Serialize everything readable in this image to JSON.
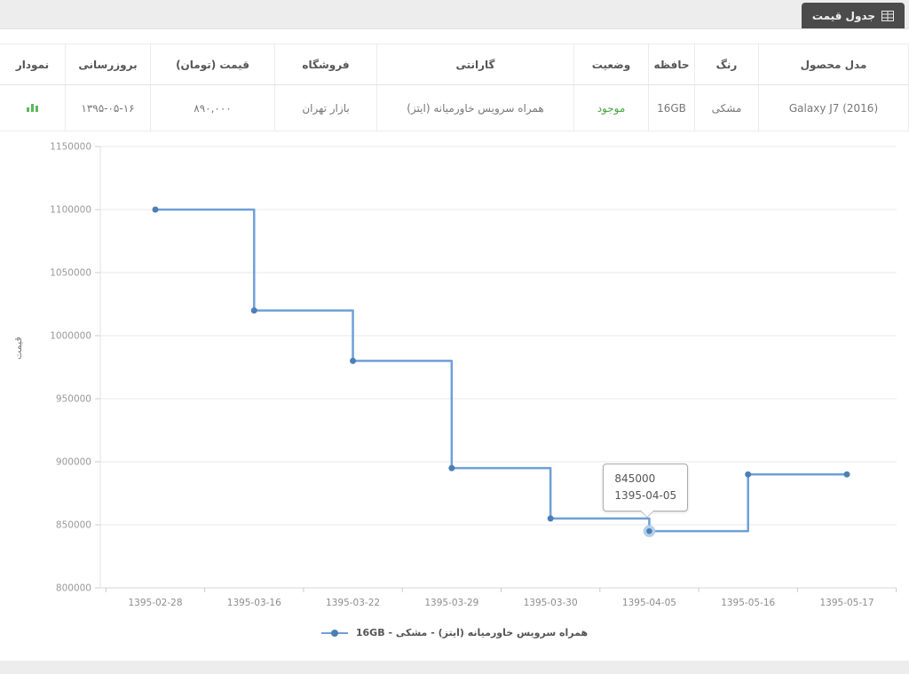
{
  "page": {
    "tab_label": "جدول قیمت",
    "colors": {
      "tab_background": "#4b4b4b",
      "status_available": "#47a447",
      "chart_line": "#6f9fd8",
      "chart_marker": "#4d7fb5"
    }
  },
  "table": {
    "columns": [
      {
        "key": "model",
        "label": "مدل محصول"
      },
      {
        "key": "color",
        "label": "رنگ"
      },
      {
        "key": "memory",
        "label": "حافظه"
      },
      {
        "key": "status",
        "label": "وضعیت"
      },
      {
        "key": "warranty",
        "label": "گارانتی"
      },
      {
        "key": "store",
        "label": "فروشگاه"
      },
      {
        "key": "price",
        "label": "قیمت (تومان)"
      },
      {
        "key": "updated",
        "label": "بروزرسانی"
      },
      {
        "key": "chart",
        "label": "نمودار"
      }
    ],
    "row": {
      "model": "Galaxy J7 (2016)",
      "color": "مشکی",
      "memory": "16GB",
      "status": "موجود",
      "warranty": "همراه سرویس خاورمیانه (ایتز)",
      "store": "بازار تهران",
      "price": "۸۹۰,۰۰۰",
      "updated": "۱۳۹۵-۰۵-۱۶",
      "chart_icon": "mini-bar-chart-icon"
    }
  },
  "chart_data": {
    "type": "line",
    "step": "after",
    "categories": [
      "1395-02-28",
      "1395-03-16",
      "1395-03-22",
      "1395-03-29",
      "1395-03-30",
      "1395-04-05",
      "1395-05-16",
      "1395-05-17"
    ],
    "values": [
      1100000,
      1020000,
      980000,
      895000,
      855000,
      845000,
      890000,
      890000
    ],
    "series_name": "همراه سرویس خاورمیانه (ایتز) - مشکی - 16GB",
    "title": "",
    "xlabel": "",
    "ylabel": "قیمت",
    "ylim": [
      800000,
      1150000
    ],
    "ytick_step": 50000,
    "grid": true,
    "legend_position": "bottom",
    "line_color": "#6f9fd8",
    "marker_color": "#4d7fb5",
    "highlight_ring_color": "#b3cfec",
    "tooltip": {
      "index": 5,
      "value_label": "845000",
      "date_label": "1395-04-05"
    }
  }
}
